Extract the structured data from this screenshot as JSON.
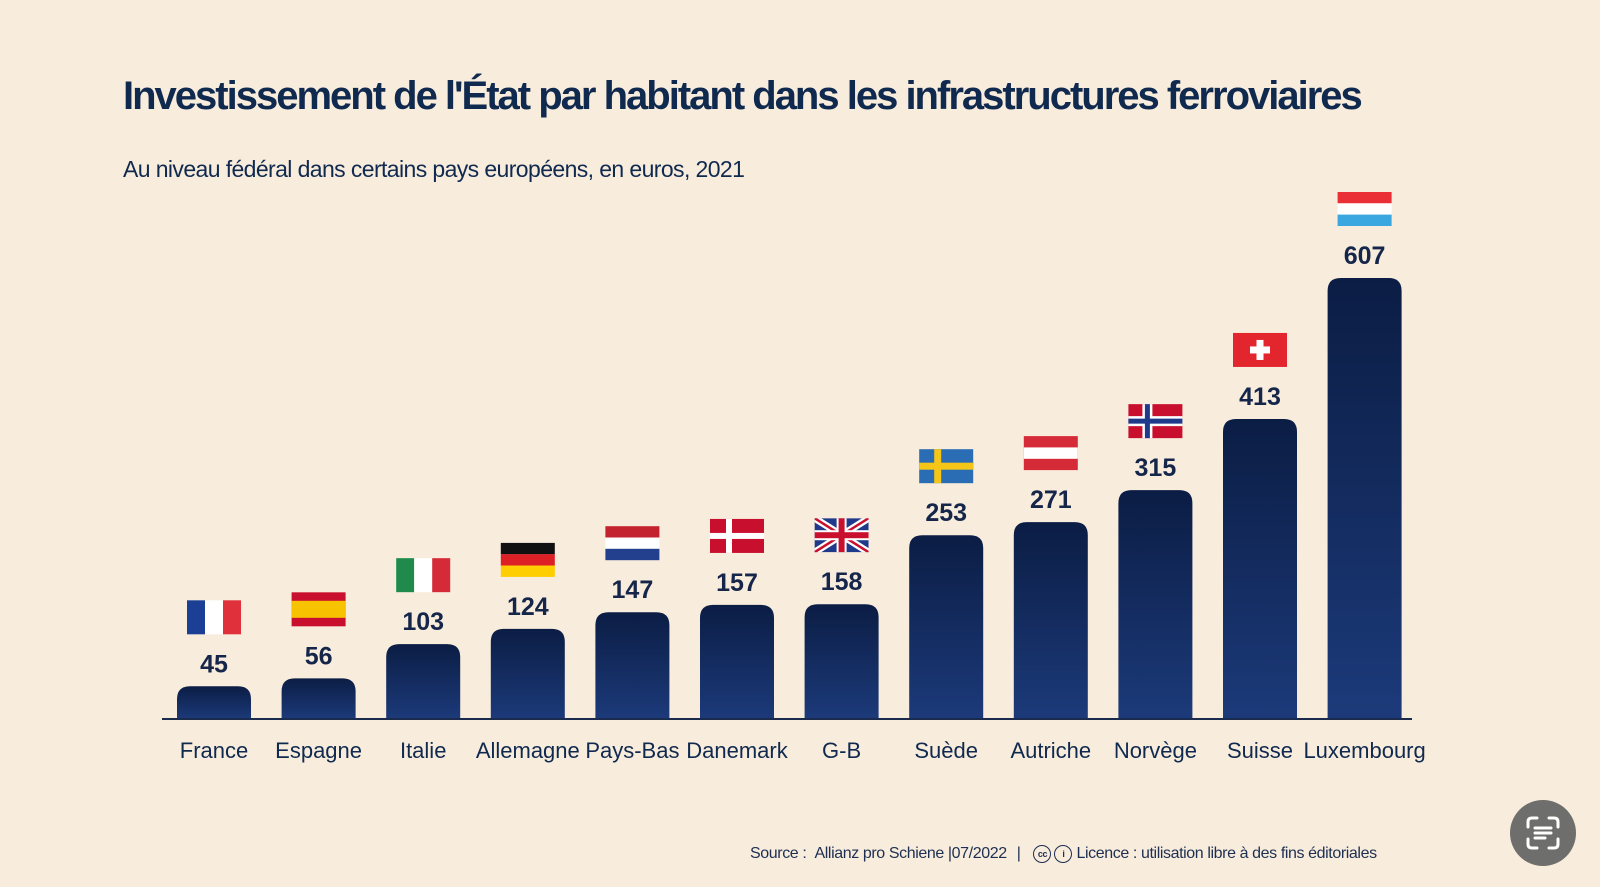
{
  "title": "Investissement de l'État par habitant dans les infrastructures ferroviaires",
  "subtitle": "Au niveau fédéral dans certains pays européens, en euros, 2021",
  "source": {
    "prefix": "Source :",
    "name": "Allianz pro Schiene",
    "date": "|07/2022",
    "separator": "|",
    "license": "Licence : utilisation libre à des fins éditoriales",
    "cc_icons": [
      "cc-icon",
      "attribution-icon"
    ]
  },
  "colors": {
    "background": "#f8ecdc",
    "bar_top": "#0b1d44",
    "bar_bottom": "#1c3a7a",
    "text": "#10294f"
  },
  "chart_data": {
    "type": "bar",
    "categories": [
      "France",
      "Espagne",
      "Italie",
      "Allemagne",
      "Pays-Bas",
      "Danemark",
      "G-B",
      "Suède",
      "Autriche",
      "Norvège",
      "Suisse",
      "Luxembourg"
    ],
    "values": [
      45,
      56,
      103,
      124,
      147,
      157,
      158,
      253,
      271,
      315,
      413,
      607
    ],
    "flag_icons": [
      "flag-france-icon",
      "flag-spain-icon",
      "flag-italy-icon",
      "flag-germany-icon",
      "flag-netherlands-icon",
      "flag-denmark-icon",
      "flag-uk-icon",
      "flag-sweden-icon",
      "flag-austria-icon",
      "flag-norway-icon",
      "flag-switzerland-icon",
      "flag-luxembourg-icon"
    ],
    "title": "Investissement de l'État par habitant dans les infrastructures ferroviaires",
    "xlabel": "",
    "ylabel": "",
    "ylim": [
      0,
      607
    ],
    "grid": false,
    "data_labels": true
  }
}
